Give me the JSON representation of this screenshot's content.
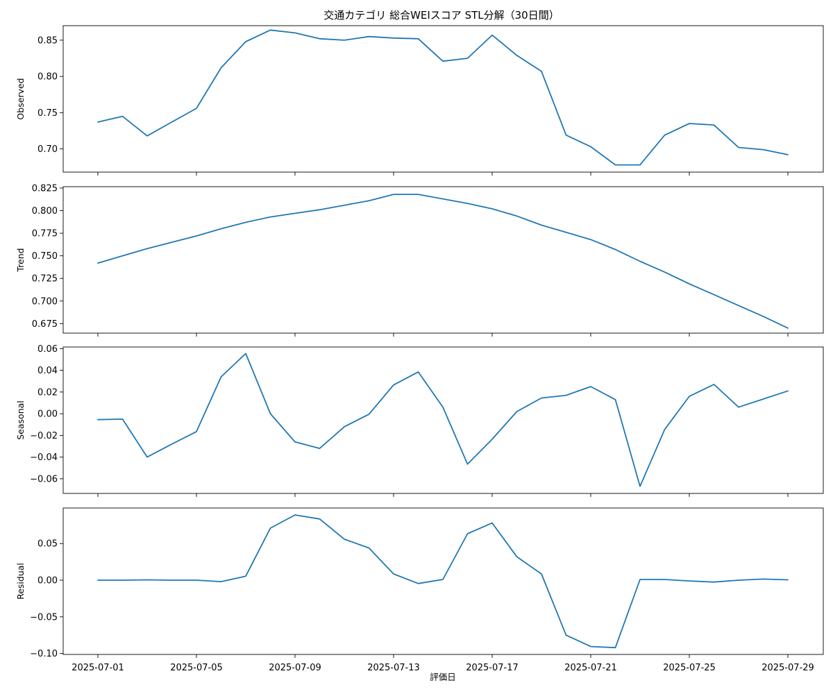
{
  "figure": {
    "title": "交通カテゴリ 総合WEIスコア STL分解（30日間）",
    "xlabel": "評価日"
  },
  "colors": {
    "line": "#1f77b4"
  },
  "chart_data": [
    {
      "type": "line",
      "ylabel": "Observed",
      "ylim": [
        0.668,
        0.87
      ],
      "yticks": [
        0.7,
        0.75,
        0.8,
        0.85
      ],
      "ytick_labels": [
        "0.70",
        "0.75",
        "0.80",
        "0.85"
      ],
      "x": [
        "2025-07-01",
        "2025-07-02",
        "2025-07-03",
        "2025-07-04",
        "2025-07-05",
        "2025-07-06",
        "2025-07-07",
        "2025-07-08",
        "2025-07-09",
        "2025-07-10",
        "2025-07-11",
        "2025-07-12",
        "2025-07-13",
        "2025-07-14",
        "2025-07-15",
        "2025-07-16",
        "2025-07-17",
        "2025-07-18",
        "2025-07-19",
        "2025-07-20",
        "2025-07-21",
        "2025-07-22",
        "2025-07-23",
        "2025-07-24",
        "2025-07-25",
        "2025-07-26",
        "2025-07-27",
        "2025-07-28",
        "2025-07-29"
      ],
      "values": [
        0.737,
        0.745,
        0.718,
        0.737,
        0.756,
        0.812,
        0.848,
        0.864,
        0.86,
        0.852,
        0.85,
        0.855,
        0.853,
        0.852,
        0.821,
        0.825,
        0.857,
        0.829,
        0.807,
        0.719,
        0.703,
        0.678,
        0.678,
        0.719,
        0.735,
        0.733,
        0.702,
        0.699,
        0.692
      ],
      "xticks": [
        "2025-07-01",
        "2025-07-05",
        "2025-07-09",
        "2025-07-13",
        "2025-07-17",
        "2025-07-21",
        "2025-07-25",
        "2025-07-29"
      ],
      "show_xtick_labels": false
    },
    {
      "type": "line",
      "ylabel": "Trend",
      "ylim": [
        0.6645,
        0.8265
      ],
      "yticks": [
        0.675,
        0.7,
        0.725,
        0.75,
        0.775,
        0.8,
        0.825
      ],
      "ytick_labels": [
        "0.675",
        "0.700",
        "0.725",
        "0.750",
        "0.775",
        "0.800",
        "0.825"
      ],
      "x": [
        "2025-07-01",
        "2025-07-02",
        "2025-07-03",
        "2025-07-04",
        "2025-07-05",
        "2025-07-06",
        "2025-07-07",
        "2025-07-08",
        "2025-07-09",
        "2025-07-10",
        "2025-07-11",
        "2025-07-12",
        "2025-07-13",
        "2025-07-14",
        "2025-07-15",
        "2025-07-16",
        "2025-07-17",
        "2025-07-18",
        "2025-07-19",
        "2025-07-20",
        "2025-07-21",
        "2025-07-22",
        "2025-07-23",
        "2025-07-24",
        "2025-07-25",
        "2025-07-26",
        "2025-07-27",
        "2025-07-28",
        "2025-07-29"
      ],
      "values": [
        0.742,
        0.75,
        0.758,
        0.765,
        0.772,
        0.78,
        0.787,
        0.793,
        0.797,
        0.801,
        0.806,
        0.811,
        0.818,
        0.818,
        0.813,
        0.808,
        0.802,
        0.794,
        0.784,
        0.776,
        0.768,
        0.757,
        0.744,
        0.732,
        0.719,
        0.707,
        0.695,
        0.683,
        0.67
      ],
      "xticks": [
        "2025-07-01",
        "2025-07-05",
        "2025-07-09",
        "2025-07-13",
        "2025-07-17",
        "2025-07-21",
        "2025-07-25",
        "2025-07-29"
      ],
      "show_xtick_labels": false
    },
    {
      "type": "line",
      "ylabel": "Seasonal",
      "ylim": [
        -0.0735,
        0.0615
      ],
      "yticks": [
        -0.06,
        -0.04,
        -0.02,
        0.0,
        0.02,
        0.04,
        0.06
      ],
      "ytick_labels": [
        "−0.06",
        "−0.04",
        "−0.02",
        "0.00",
        "0.02",
        "0.04",
        "0.06"
      ],
      "x": [
        "2025-07-01",
        "2025-07-02",
        "2025-07-03",
        "2025-07-04",
        "2025-07-05",
        "2025-07-06",
        "2025-07-07",
        "2025-07-08",
        "2025-07-09",
        "2025-07-10",
        "2025-07-11",
        "2025-07-12",
        "2025-07-13",
        "2025-07-14",
        "2025-07-15",
        "2025-07-16",
        "2025-07-17",
        "2025-07-18",
        "2025-07-19",
        "2025-07-20",
        "2025-07-21",
        "2025-07-22",
        "2025-07-23",
        "2025-07-24",
        "2025-07-25",
        "2025-07-26",
        "2025-07-27",
        "2025-07-28",
        "2025-07-29"
      ],
      "values": [
        -0.0055,
        -0.005,
        -0.04,
        -0.028,
        -0.0165,
        0.034,
        0.0555,
        0.0,
        -0.026,
        -0.032,
        -0.012,
        -0.0005,
        0.0265,
        0.0385,
        0.006,
        -0.0465,
        -0.0235,
        0.002,
        0.0145,
        0.017,
        0.025,
        0.013,
        -0.067,
        -0.0145,
        0.016,
        0.027,
        0.006,
        0.0135,
        0.021
      ],
      "xticks": [
        "2025-07-01",
        "2025-07-05",
        "2025-07-09",
        "2025-07-13",
        "2025-07-17",
        "2025-07-21",
        "2025-07-25",
        "2025-07-29"
      ],
      "show_xtick_labels": false
    },
    {
      "type": "line",
      "ylabel": "Residual",
      "ylim": [
        -0.1013,
        0.0985
      ],
      "yticks": [
        -0.1,
        -0.05,
        0.0,
        0.05
      ],
      "ytick_labels": [
        "−0.10",
        "−0.05",
        "0.00",
        "0.05"
      ],
      "x": [
        "2025-07-01",
        "2025-07-02",
        "2025-07-03",
        "2025-07-04",
        "2025-07-05",
        "2025-07-06",
        "2025-07-07",
        "2025-07-08",
        "2025-07-09",
        "2025-07-10",
        "2025-07-11",
        "2025-07-12",
        "2025-07-13",
        "2025-07-14",
        "2025-07-15",
        "2025-07-16",
        "2025-07-17",
        "2025-07-18",
        "2025-07-19",
        "2025-07-20",
        "2025-07-21",
        "2025-07-22",
        "2025-07-23",
        "2025-07-24",
        "2025-07-25",
        "2025-07-26",
        "2025-07-27",
        "2025-07-28",
        "2025-07-29"
      ],
      "values": [
        0.0,
        0.0,
        0.0005,
        0.0,
        0.0,
        -0.002,
        0.0055,
        0.071,
        0.089,
        0.0835,
        0.056,
        0.044,
        0.0085,
        -0.0045,
        0.001,
        0.0635,
        0.078,
        0.032,
        0.0085,
        -0.075,
        -0.0905,
        -0.092,
        0.001,
        0.001,
        -0.001,
        -0.0025,
        0.0,
        0.0015,
        0.0005
      ],
      "xticks": [
        "2025-07-01",
        "2025-07-05",
        "2025-07-09",
        "2025-07-13",
        "2025-07-17",
        "2025-07-21",
        "2025-07-25",
        "2025-07-29"
      ],
      "show_xtick_labels": true
    }
  ]
}
